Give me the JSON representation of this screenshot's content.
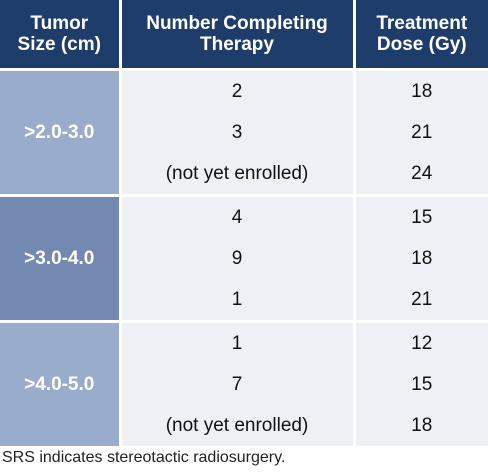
{
  "table": {
    "headers": {
      "size_line1": "Tumor",
      "size_line2": "Size (cm)",
      "number_line1": "Number Completing",
      "number_line2": "Therapy",
      "dose_line1": "Treatment",
      "dose_line2": "Dose (Gy)"
    },
    "groups": [
      {
        "size": ">2.0-3.0",
        "rows": [
          {
            "number": "2",
            "dose": "18"
          },
          {
            "number": "3",
            "dose": "21"
          },
          {
            "number": "(not yet enrolled)",
            "dose": "24"
          }
        ]
      },
      {
        "size": ">3.0-4.0",
        "rows": [
          {
            "number": "4",
            "dose": "15"
          },
          {
            "number": "9",
            "dose": "18"
          },
          {
            "number": "1",
            "dose": "21"
          }
        ]
      },
      {
        "size": ">4.0-5.0",
        "rows": [
          {
            "number": "1",
            "dose": "12"
          },
          {
            "number": "7",
            "dose": "15"
          },
          {
            "number": "(not yet enrolled)",
            "dose": "18"
          }
        ]
      }
    ]
  },
  "footnote": "SRS indicates stereotactic radiosurgery.",
  "colors": {
    "header_bg": "#1e3d6b",
    "size_light": "#9aaccb",
    "size_dark": "#7389b2",
    "row_bg": "#eef0f5"
  }
}
